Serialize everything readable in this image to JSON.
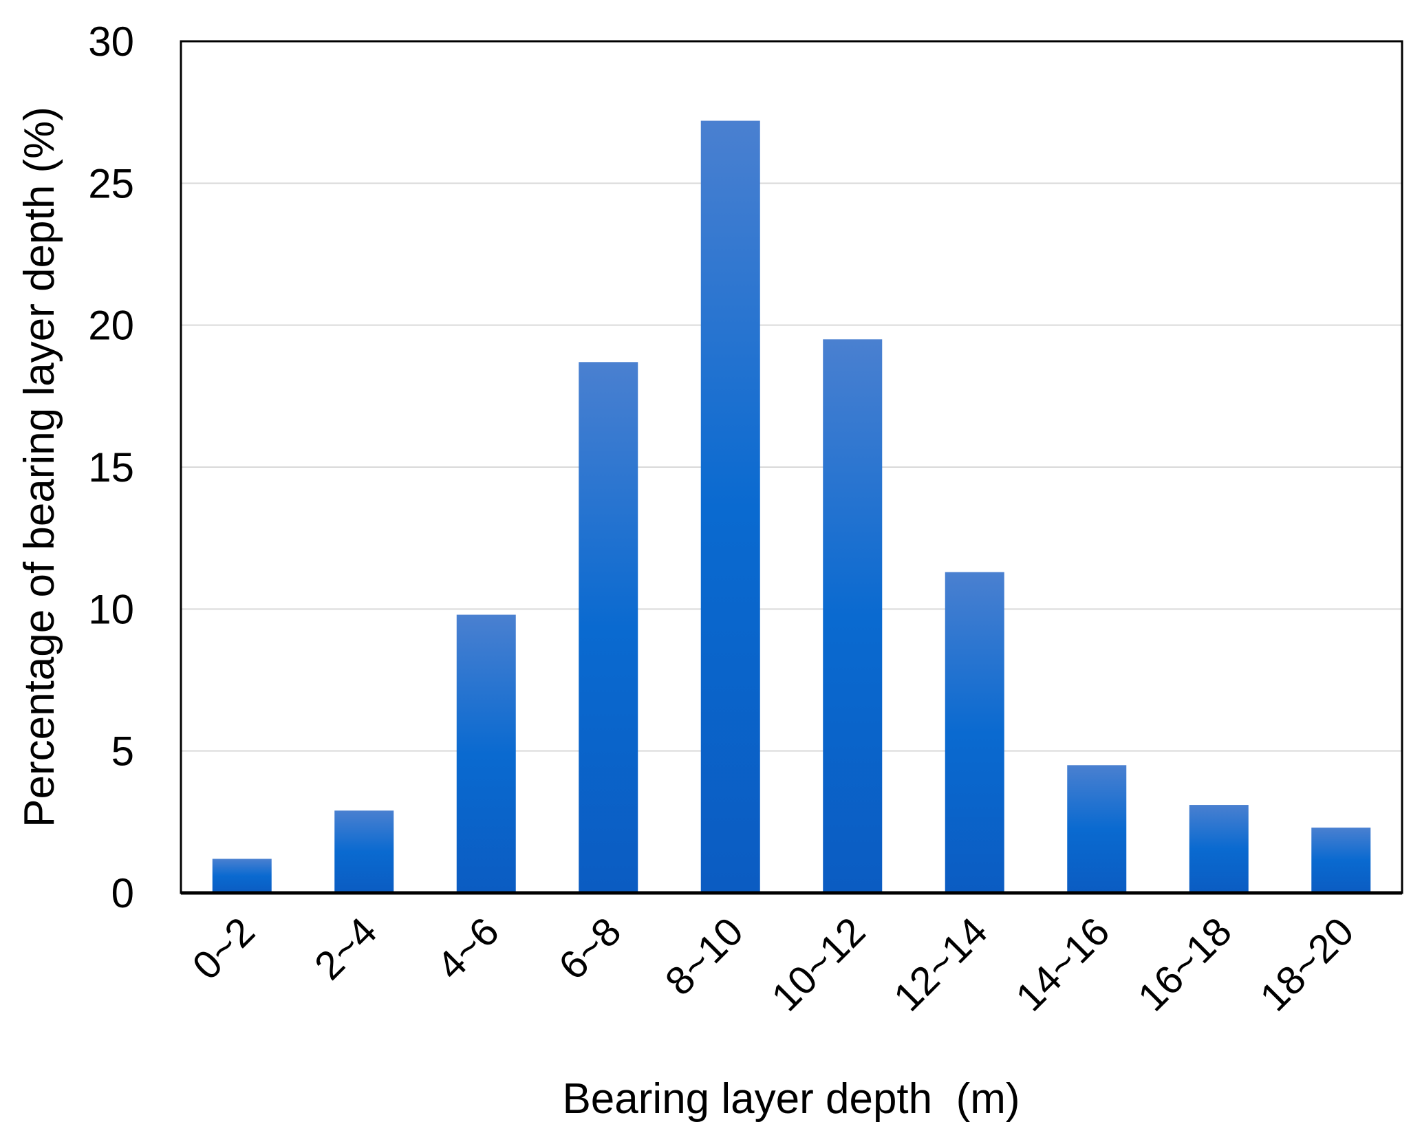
{
  "chart_data": {
    "type": "bar",
    "title": "",
    "xlabel": "Bearing layer depth  (m)",
    "ylabel": "Percentage of bearing layer depth (%)",
    "categories": [
      "0~2",
      "2~4",
      "4~6",
      "6~8",
      "8~10",
      "10~12",
      "12~14",
      "14~16",
      "16~18",
      "18~20"
    ],
    "values": [
      1.2,
      2.9,
      9.8,
      18.7,
      27.2,
      19.5,
      11.3,
      4.5,
      3.1,
      2.3
    ],
    "ylim": [
      0,
      30
    ],
    "yticks": [
      "0",
      "5",
      "10",
      "15",
      "20",
      "25",
      "30"
    ],
    "grid": true,
    "legend": "none",
    "colors": {
      "bar_top": "#4a80d0",
      "bar_mid": "#0a6ad0",
      "bar_bottom": "#0b5cc2",
      "grid": "#d9d9d9",
      "axis": "#000000"
    }
  }
}
